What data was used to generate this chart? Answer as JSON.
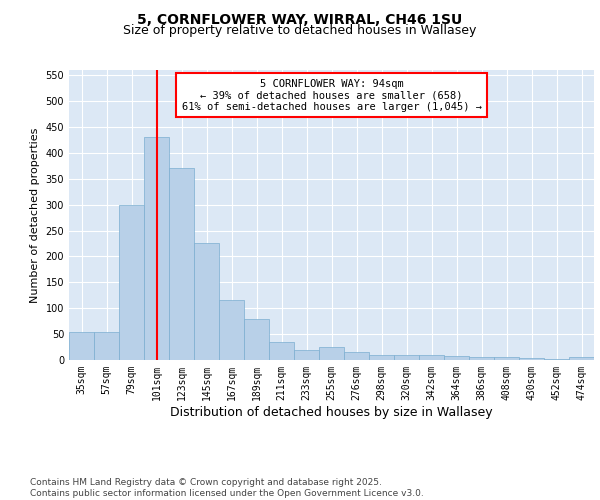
{
  "title_line1": "5, CORNFLOWER WAY, WIRRAL, CH46 1SU",
  "title_line2": "Size of property relative to detached houses in Wallasey",
  "xlabel": "Distribution of detached houses by size in Wallasey",
  "ylabel": "Number of detached properties",
  "categories": [
    "35sqm",
    "57sqm",
    "79sqm",
    "101sqm",
    "123sqm",
    "145sqm",
    "167sqm",
    "189sqm",
    "211sqm",
    "233sqm",
    "255sqm",
    "276sqm",
    "298sqm",
    "320sqm",
    "342sqm",
    "364sqm",
    "386sqm",
    "408sqm",
    "430sqm",
    "452sqm",
    "474sqm"
  ],
  "values": [
    55,
    55,
    300,
    430,
    370,
    225,
    115,
    80,
    35,
    20,
    25,
    15,
    10,
    10,
    10,
    7,
    5,
    5,
    3,
    2,
    5
  ],
  "bar_color": "#b8d0e8",
  "bar_edge_color": "#7aaed0",
  "vline_x": 3,
  "vline_color": "red",
  "annotation_text": "5 CORNFLOWER WAY: 94sqm\n← 39% of detached houses are smaller (658)\n61% of semi-detached houses are larger (1,045) →",
  "annotation_box_color": "white",
  "annotation_box_edge_color": "red",
  "ylim": [
    0,
    560
  ],
  "yticks": [
    0,
    50,
    100,
    150,
    200,
    250,
    300,
    350,
    400,
    450,
    500,
    550
  ],
  "background_color": "#dce8f5",
  "footer_text": "Contains HM Land Registry data © Crown copyright and database right 2025.\nContains public sector information licensed under the Open Government Licence v3.0.",
  "title_fontsize": 10,
  "subtitle_fontsize": 9,
  "xlabel_fontsize": 9,
  "ylabel_fontsize": 8,
  "tick_fontsize": 7,
  "annotation_fontsize": 7.5,
  "footer_fontsize": 6.5
}
